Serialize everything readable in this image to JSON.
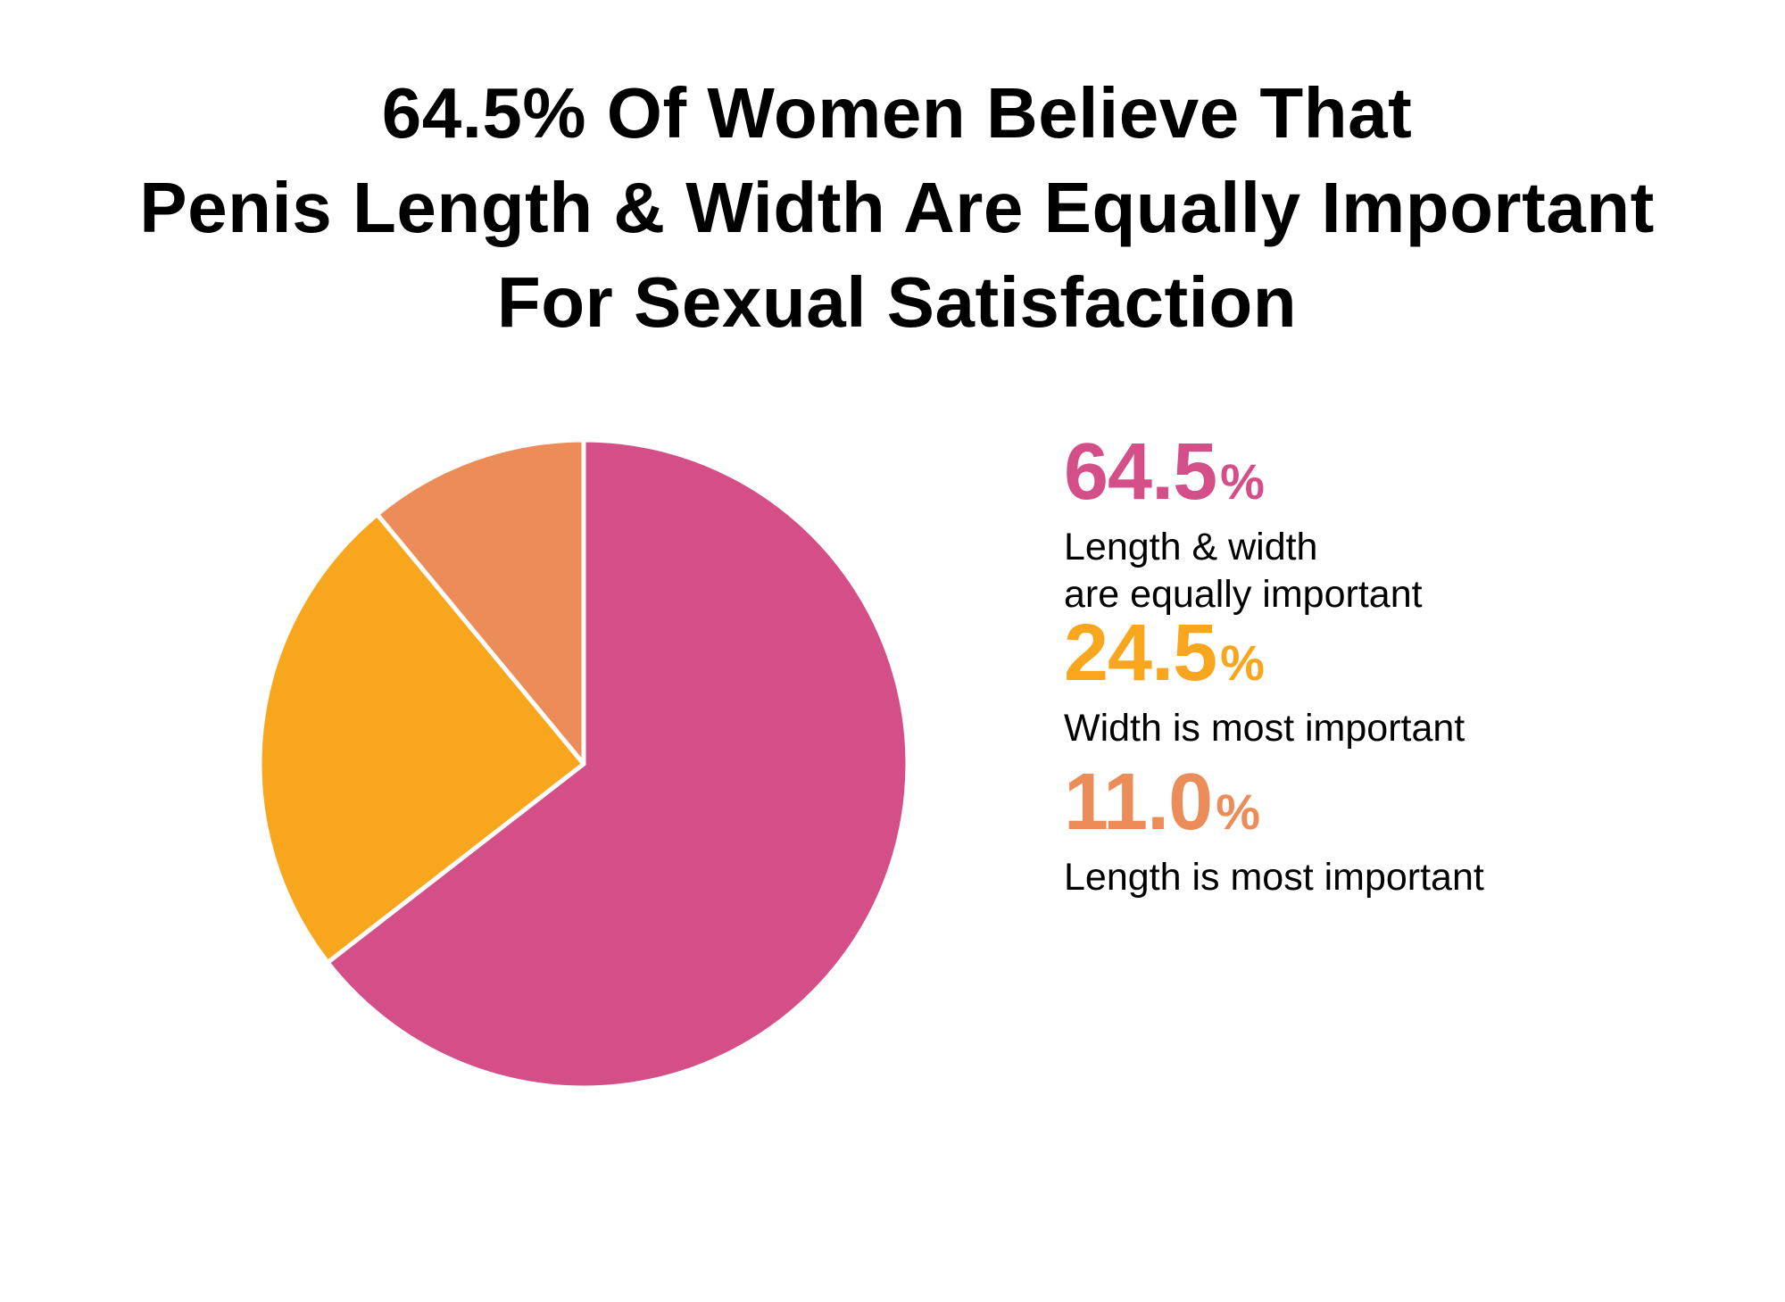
{
  "chart_data": {
    "type": "pie",
    "title_lines": [
      "64.5% Of Women Believe That",
      "Penis Length & Width Are Equally Important",
      "For Sexual Satisfaction"
    ],
    "slices": [
      {
        "value": 64.5,
        "value_label": "64.5",
        "percent_sign": "%",
        "label_lines": [
          "Length & width",
          "are equally important"
        ],
        "color": "#D44F87"
      },
      {
        "value": 24.5,
        "value_label": "24.5",
        "percent_sign": "%",
        "label_lines": [
          "Width is most important"
        ],
        "color": "#F9A61F"
      },
      {
        "value": 11.0,
        "value_label": "11.0",
        "percent_sign": "%",
        "label_lines": [
          "Length is most important"
        ],
        "color": "#EC8C58"
      }
    ],
    "start_angle": "12 o'clock",
    "direction": "clockwise",
    "legend_placement": "right"
  }
}
